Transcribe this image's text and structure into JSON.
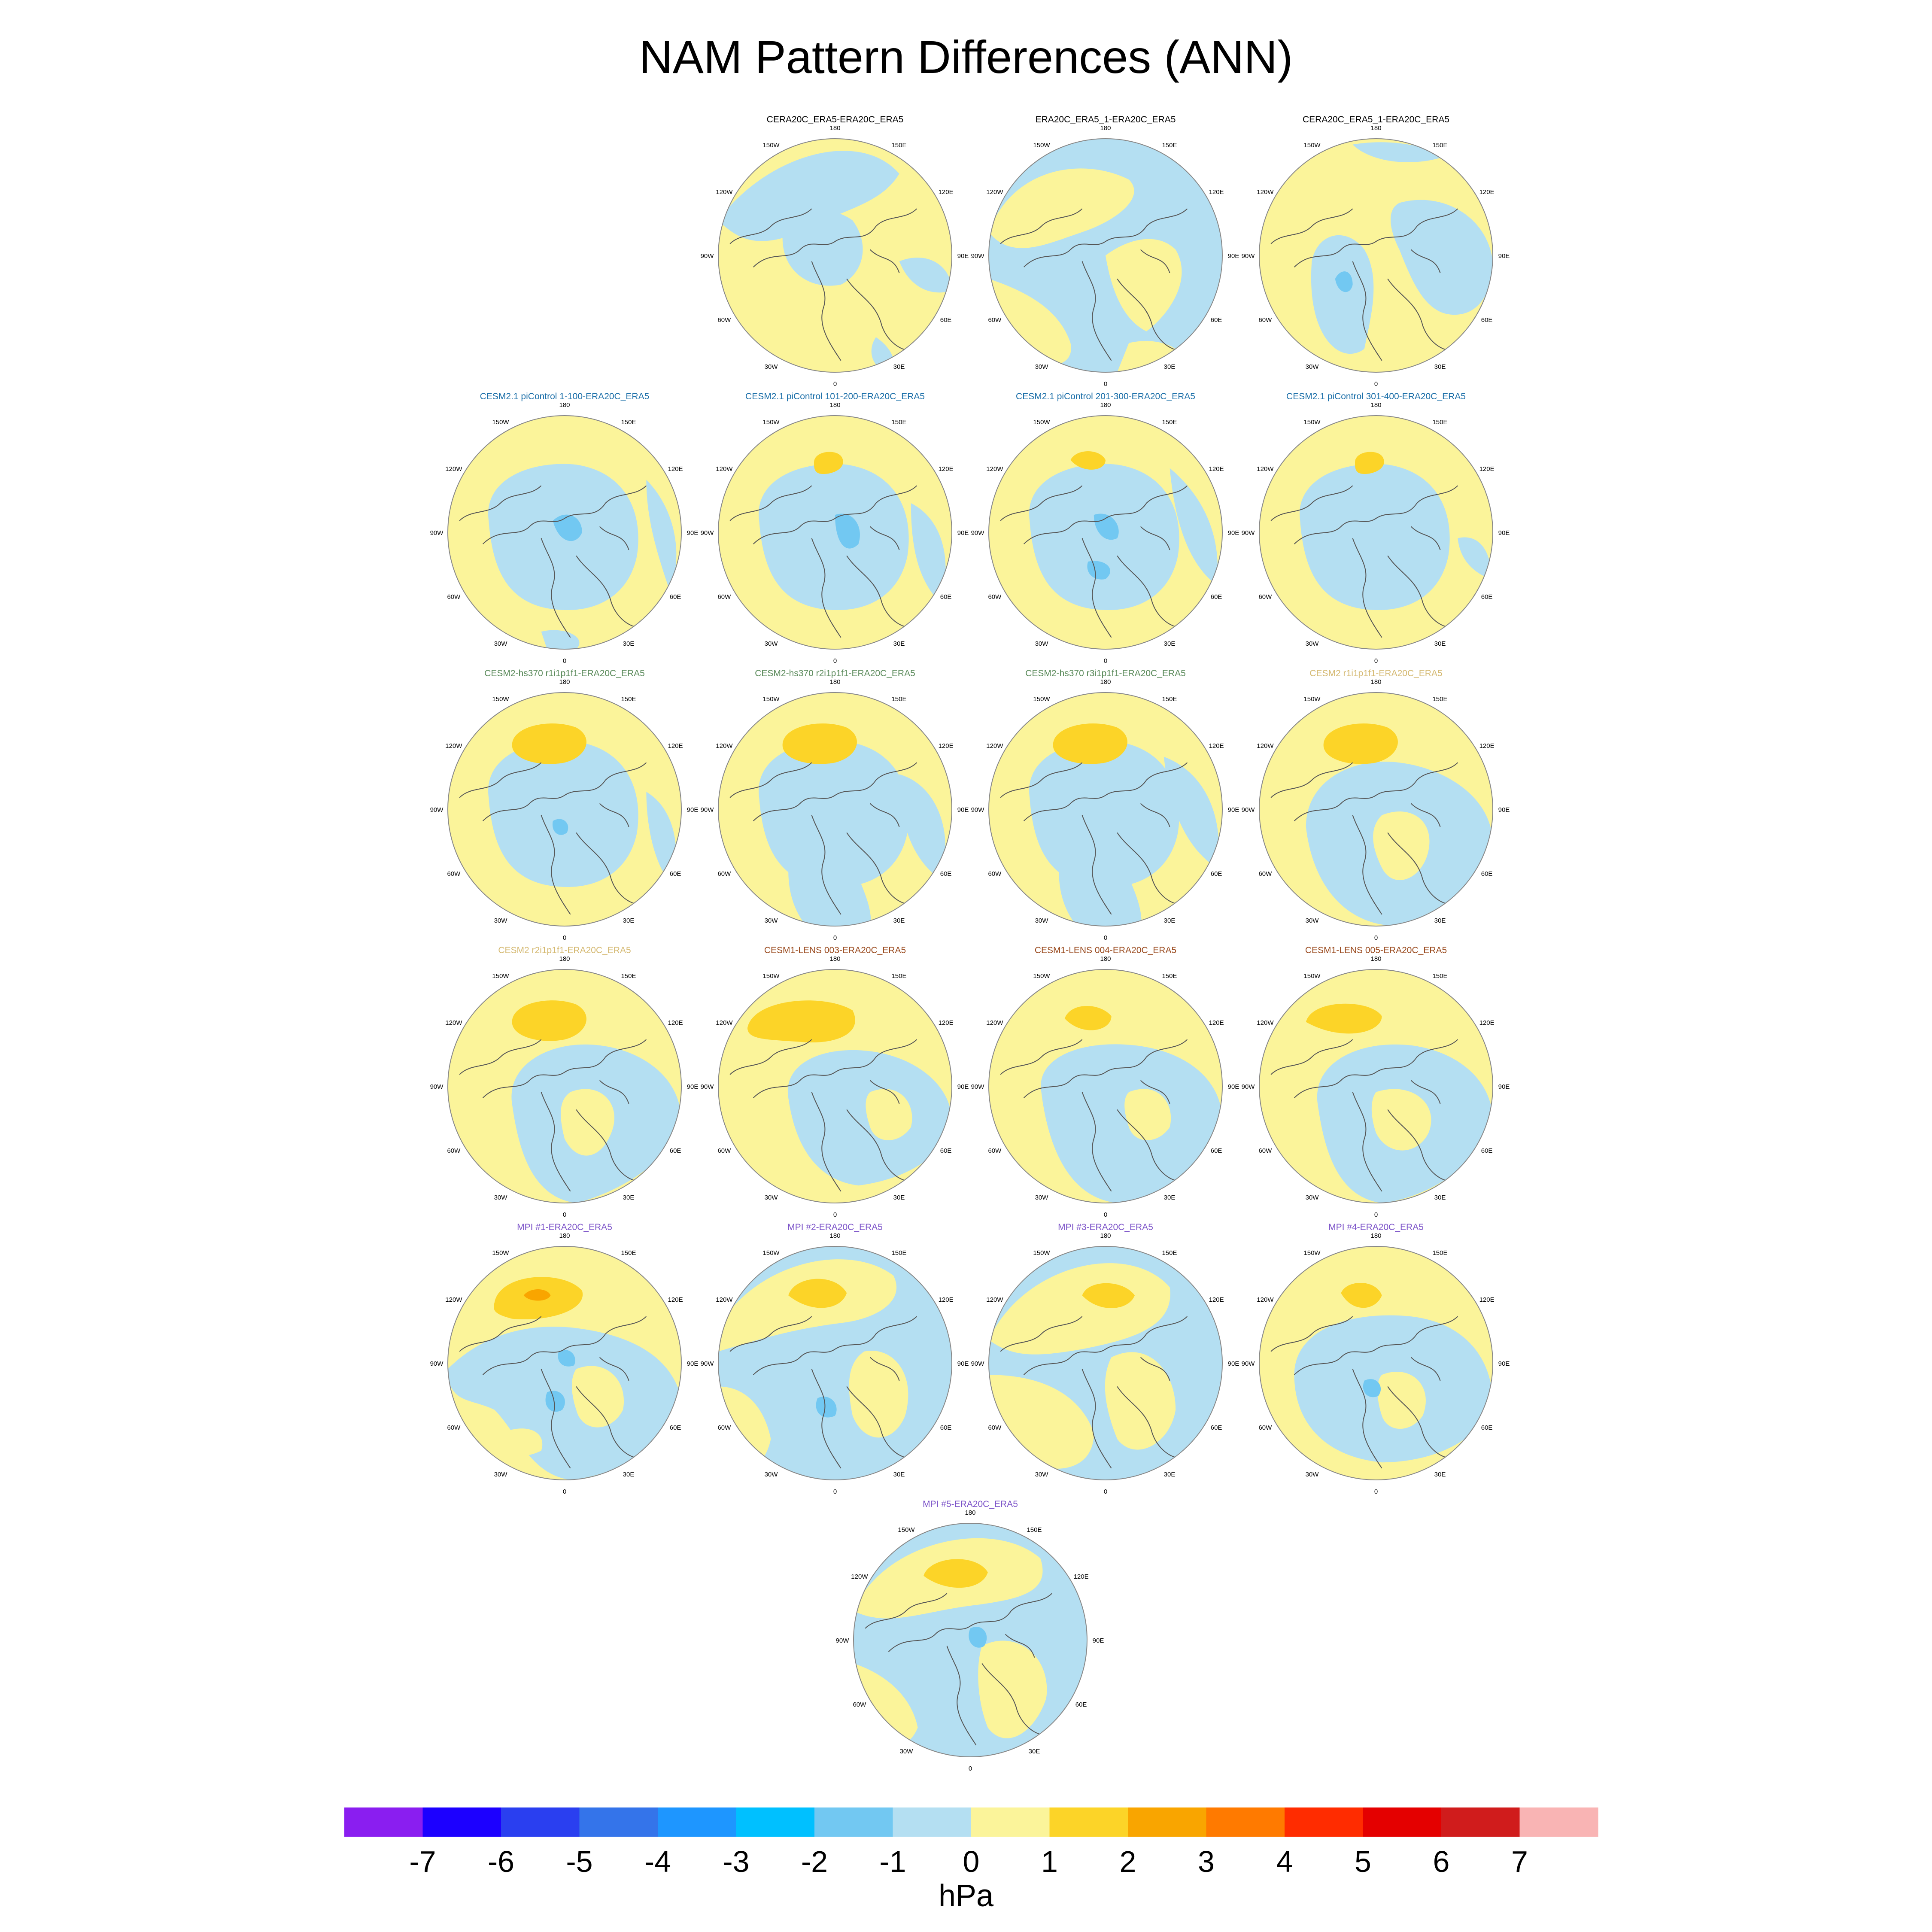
{
  "title": "NAM Pattern Differences (ANN)",
  "longitude_labels": [
    "180",
    "150E",
    "120E",
    "90E",
    "60E",
    "30E",
    "0",
    "30W",
    "60W",
    "90W",
    "120W",
    "150W"
  ],
  "panels": [
    {
      "title": "CERA20C_ERA5-ERA20C_ERA5",
      "title_color": "#000000",
      "pattern": "cera",
      "max_positive": "0-1",
      "max_negative": "-1-0"
    },
    {
      "title": "ERA20C_ERA5_1-ERA20C_ERA5",
      "title_color": "#000000",
      "pattern": "era1",
      "max_positive": "0-1",
      "max_negative": "-1-0"
    },
    {
      "title": "CERA20C_ERA5_1-ERA20C_ERA5",
      "title_color": "#000000",
      "pattern": "cera1",
      "max_positive": "0-1",
      "max_negative": "-2--1"
    },
    {
      "title": "CESM2.1 piControl 1-100-ERA20C_ERA5",
      "title_color": "#1a6ea8",
      "pattern": "cesm21a",
      "max_positive": "0-1",
      "max_negative": "-2--1"
    },
    {
      "title": "CESM2.1 piControl 101-200-ERA20C_ERA5",
      "title_color": "#1a6ea8",
      "pattern": "cesm21b",
      "max_positive": "1-2",
      "max_negative": "-2--1"
    },
    {
      "title": "CESM2.1 piControl 201-300-ERA20C_ERA5",
      "title_color": "#1a6ea8",
      "pattern": "cesm21c",
      "max_positive": "1-2",
      "max_negative": "-2--1"
    },
    {
      "title": "CESM2.1 piControl 301-400-ERA20C_ERA5",
      "title_color": "#1a6ea8",
      "pattern": "cesm21d",
      "max_positive": "1-2",
      "max_negative": "-1-0"
    },
    {
      "title": "CESM2-hs370 r1i1p1f1-ERA20C_ERA5",
      "title_color": "#5a8a5a",
      "pattern": "hs1",
      "max_positive": "1-2",
      "max_negative": "-2--1"
    },
    {
      "title": "CESM2-hs370 r2i1p1f1-ERA20C_ERA5",
      "title_color": "#5a8a5a",
      "pattern": "hs2",
      "max_positive": "1-2",
      "max_negative": "-1-0"
    },
    {
      "title": "CESM2-hs370 r3i1p1f1-ERA20C_ERA5",
      "title_color": "#5a8a5a",
      "pattern": "hs3",
      "max_positive": "1-2",
      "max_negative": "-1-0"
    },
    {
      "title": "CESM2 r1i1p1f1-ERA20C_ERA5",
      "title_color": "#d4b870",
      "pattern": "c2r1",
      "max_positive": "1-2",
      "max_negative": "-1-0"
    },
    {
      "title": "CESM2 r2i1p1f1-ERA20C_ERA5",
      "title_color": "#d4b870",
      "pattern": "c2r2",
      "max_positive": "1-2",
      "max_negative": "-1-0"
    },
    {
      "title": "CESM1-LENS 003-ERA20C_ERA5",
      "title_color": "#9a4a1e",
      "pattern": "lens3",
      "max_positive": "1-2",
      "max_negative": "-1-0"
    },
    {
      "title": "CESM1-LENS 004-ERA20C_ERA5",
      "title_color": "#9a4a1e",
      "pattern": "lens4",
      "max_positive": "1-2",
      "max_negative": "-1-0"
    },
    {
      "title": "CESM1-LENS 005-ERA20C_ERA5",
      "title_color": "#9a4a1e",
      "pattern": "lens5",
      "max_positive": "1-2",
      "max_negative": "-1-0"
    },
    {
      "title": "MPI #1-ERA20C_ERA5",
      "title_color": "#7b52c8",
      "pattern": "mpi1",
      "max_positive": "2-3",
      "max_negative": "-2--1"
    },
    {
      "title": "MPI #2-ERA20C_ERA5",
      "title_color": "#7b52c8",
      "pattern": "mpi2",
      "max_positive": "1-2",
      "max_negative": "-2--1"
    },
    {
      "title": "MPI #3-ERA20C_ERA5",
      "title_color": "#7b52c8",
      "pattern": "mpi3",
      "max_positive": "1-2",
      "max_negative": "-1-0"
    },
    {
      "title": "MPI #4-ERA20C_ERA5",
      "title_color": "#7b52c8",
      "pattern": "mpi4",
      "max_positive": "1-2",
      "max_negative": "-2--1"
    },
    {
      "title": "MPI #5-ERA20C_ERA5",
      "title_color": "#7b52c8",
      "pattern": "mpi5",
      "max_positive": "1-2",
      "max_negative": "-2--1"
    }
  ],
  "colorbar": {
    "units": "hPa",
    "tick_labels": [
      "-7",
      "-6",
      "-5",
      "-4",
      "-3",
      "-2",
      "-1",
      "0",
      "1",
      "2",
      "3",
      "4",
      "5",
      "6",
      "7"
    ],
    "colors": [
      "#8a1ef0",
      "#1c00ff",
      "#2a3ff0",
      "#3474ea",
      "#1e96ff",
      "#00c0ff",
      "#72c8f2",
      "#b4dff2",
      "#fbf49a",
      "#fcd428",
      "#f9a500",
      "#ff7a00",
      "#ff2c00",
      "#e40000",
      "#d01c1c",
      "#f9b4b4"
    ]
  }
}
